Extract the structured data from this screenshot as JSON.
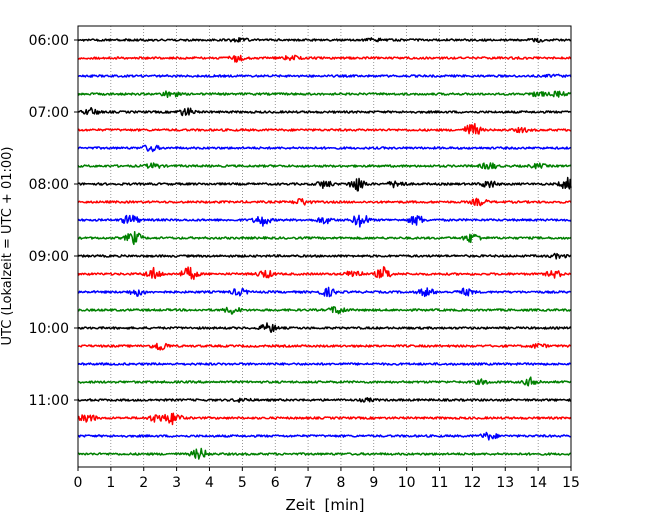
{
  "chart_data": {
    "type": "line",
    "title": "",
    "xlabel": "Zeit  [min]",
    "ylabel": "UTC (Lokalzeit = UTC + 01:00)",
    "xlim": [
      0,
      15
    ],
    "x_ticks": [
      0,
      1,
      2,
      3,
      4,
      5,
      6,
      7,
      8,
      9,
      10,
      11,
      12,
      13,
      14,
      15
    ],
    "x_tick_labels": [
      "0",
      "1",
      "2",
      "3",
      "4",
      "5",
      "6",
      "7",
      "8",
      "9",
      "10",
      "11",
      "12",
      "13",
      "14",
      "15"
    ],
    "y_ticks": [
      "06:00",
      "07:00",
      "08:00",
      "09:00",
      "10:00",
      "11:00"
    ],
    "trace_minutes": 15,
    "first_trace_utc": "06:00",
    "trace_interval_min": 15,
    "vertical_grid": "dotted",
    "trace_colors": [
      "#000000",
      "#ff0000",
      "#0000ff",
      "#008000"
    ],
    "traces": [
      {
        "start": "06:00",
        "color": "#000000",
        "events": [
          {
            "t": 4.9,
            "a": 0.3
          },
          {
            "t": 9.0,
            "a": 0.2
          },
          {
            "t": 14.0,
            "a": 0.2
          }
        ]
      },
      {
        "start": "06:15",
        "color": "#ff0000",
        "events": [
          {
            "t": 4.8,
            "a": 0.5
          },
          {
            "t": 6.5,
            "a": 0.35
          }
        ]
      },
      {
        "start": "06:30",
        "color": "#0000ff",
        "events": [
          {
            "t": 14.5,
            "a": 0.15
          }
        ]
      },
      {
        "start": "06:45",
        "color": "#008000",
        "events": [
          {
            "t": 2.8,
            "a": 0.5
          },
          {
            "t": 14.0,
            "a": 0.35
          },
          {
            "t": 14.6,
            "a": 0.35
          }
        ]
      },
      {
        "start": "07:00",
        "color": "#000000",
        "events": [
          {
            "t": 0.4,
            "a": 0.5
          },
          {
            "t": 3.3,
            "a": 0.6
          }
        ]
      },
      {
        "start": "07:15",
        "color": "#ff0000",
        "events": [
          {
            "t": 12.0,
            "a": 1.0
          },
          {
            "t": 13.5,
            "a": 0.3
          }
        ]
      },
      {
        "start": "07:30",
        "color": "#0000ff",
        "events": [
          {
            "t": 2.2,
            "a": 0.5
          }
        ]
      },
      {
        "start": "07:45",
        "color": "#008000",
        "events": [
          {
            "t": 2.3,
            "a": 0.35
          },
          {
            "t": 12.5,
            "a": 0.5
          },
          {
            "t": 14.0,
            "a": 0.3
          }
        ]
      },
      {
        "start": "08:00",
        "color": "#000000",
        "events": [
          {
            "t": 7.5,
            "a": 0.55
          },
          {
            "t": 8.5,
            "a": 1.0
          },
          {
            "t": 9.7,
            "a": 0.55
          },
          {
            "t": 12.5,
            "a": 0.55
          },
          {
            "t": 14.9,
            "a": 0.8
          }
        ]
      },
      {
        "start": "08:15",
        "color": "#ff0000",
        "events": [
          {
            "t": 6.8,
            "a": 0.5
          },
          {
            "t": 12.2,
            "a": 0.5
          }
        ]
      },
      {
        "start": "08:30",
        "color": "#0000ff",
        "events": [
          {
            "t": 1.6,
            "a": 0.8
          },
          {
            "t": 5.6,
            "a": 0.8
          },
          {
            "t": 7.5,
            "a": 0.5
          },
          {
            "t": 8.6,
            "a": 1.0
          },
          {
            "t": 10.3,
            "a": 0.7
          }
        ]
      },
      {
        "start": "08:45",
        "color": "#008000",
        "events": [
          {
            "t": 1.7,
            "a": 0.9
          },
          {
            "t": 12.0,
            "a": 0.7
          }
        ]
      },
      {
        "start": "09:00",
        "color": "#000000",
        "events": [
          {
            "t": 14.6,
            "a": 0.3
          }
        ]
      },
      {
        "start": "09:15",
        "color": "#ff0000",
        "events": [
          {
            "t": 2.3,
            "a": 0.8
          },
          {
            "t": 3.4,
            "a": 1.0
          },
          {
            "t": 5.7,
            "a": 0.6
          },
          {
            "t": 8.4,
            "a": 0.6
          },
          {
            "t": 9.3,
            "a": 0.9
          },
          {
            "t": 14.5,
            "a": 0.5
          }
        ]
      },
      {
        "start": "09:30",
        "color": "#0000ff",
        "events": [
          {
            "t": 1.8,
            "a": 0.5
          },
          {
            "t": 4.9,
            "a": 0.5
          },
          {
            "t": 7.6,
            "a": 0.6
          },
          {
            "t": 10.6,
            "a": 0.6
          },
          {
            "t": 11.8,
            "a": 0.5
          }
        ]
      },
      {
        "start": "09:45",
        "color": "#008000",
        "events": [
          {
            "t": 4.7,
            "a": 0.5
          },
          {
            "t": 7.9,
            "a": 0.6
          }
        ]
      },
      {
        "start": "10:00",
        "color": "#000000",
        "events": [
          {
            "t": 5.8,
            "a": 0.7
          }
        ]
      },
      {
        "start": "10:15",
        "color": "#ff0000",
        "events": [
          {
            "t": 2.5,
            "a": 0.7
          },
          {
            "t": 14.0,
            "a": 0.3
          }
        ]
      },
      {
        "start": "10:30",
        "color": "#0000ff",
        "events": []
      },
      {
        "start": "10:45",
        "color": "#008000",
        "events": [
          {
            "t": 12.3,
            "a": 0.3
          },
          {
            "t": 13.8,
            "a": 0.6
          }
        ]
      },
      {
        "start": "11:00",
        "color": "#000000",
        "events": [
          {
            "t": 5.0,
            "a": 0.25
          },
          {
            "t": 8.8,
            "a": 0.2
          }
        ]
      },
      {
        "start": "11:15",
        "color": "#ff0000",
        "events": [
          {
            "t": 0.3,
            "a": 0.6
          },
          {
            "t": 2.4,
            "a": 0.6
          },
          {
            "t": 2.9,
            "a": 0.9
          }
        ]
      },
      {
        "start": "11:30",
        "color": "#0000ff",
        "events": [
          {
            "t": 12.5,
            "a": 0.5
          }
        ]
      },
      {
        "start": "11:45",
        "color": "#008000",
        "events": [
          {
            "t": 3.7,
            "a": 0.8
          }
        ]
      }
    ]
  }
}
